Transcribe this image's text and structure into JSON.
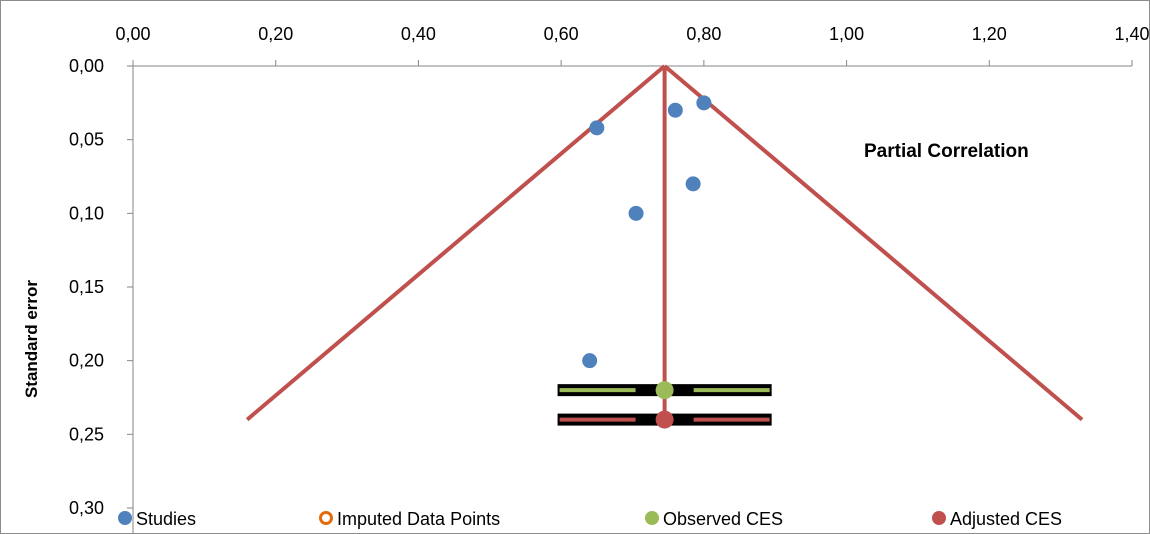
{
  "chart_data": {
    "type": "scatter",
    "title": "",
    "xlabel": "",
    "ylabel": "Standard error",
    "annotation": "Partial Correlation",
    "xlim": [
      0.0,
      1.4
    ],
    "ylim": [
      0.0,
      0.3
    ],
    "y_inverted": true,
    "x_axis_position": "top",
    "x_ticks": [
      0.0,
      0.2,
      0.4,
      0.6,
      0.8,
      1.0,
      1.2,
      1.4
    ],
    "x_tick_labels": [
      "0,00",
      "0,20",
      "0,40",
      "0,60",
      "0,80",
      "1,00",
      "1,20",
      "1,40"
    ],
    "y_ticks": [
      0.0,
      0.05,
      0.1,
      0.15,
      0.2,
      0.25,
      0.3
    ],
    "y_tick_labels": [
      "0,00",
      "0,05",
      "0,10",
      "0,15",
      "0,20",
      "0,25",
      "0,30"
    ],
    "grid": false,
    "legend_position": "bottom",
    "series": [
      {
        "name": "Studies",
        "color": "#4F81BD",
        "marker": "filled-circle",
        "points": [
          {
            "x": 0.8,
            "y": 0.025
          },
          {
            "x": 0.76,
            "y": 0.03
          },
          {
            "x": 0.65,
            "y": 0.042
          },
          {
            "x": 0.785,
            "y": 0.08
          },
          {
            "x": 0.705,
            "y": 0.1
          },
          {
            "x": 0.64,
            "y": 0.2
          }
        ]
      },
      {
        "name": "Imputed Data Points",
        "color": "#E36C09",
        "marker": "hollow-circle",
        "points": []
      },
      {
        "name": "Observed CES",
        "color": "#9BBB59",
        "marker": "filled-circle",
        "points": [
          {
            "x": 0.745,
            "y": 0.22
          }
        ],
        "ci": [
          0.595,
          0.895
        ]
      },
      {
        "name": "Adjusted CES",
        "color": "#C0504D",
        "marker": "filled-circle",
        "points": [
          {
            "x": 0.745,
            "y": 0.24
          }
        ],
        "ci": [
          0.595,
          0.895
        ]
      }
    ],
    "funnel": {
      "color": "#C0504D",
      "apex": {
        "x": 0.745,
        "y": 0.0
      },
      "left_end": {
        "x": 0.16,
        "y": 0.24
      },
      "right_end": {
        "x": 1.33,
        "y": 0.24
      },
      "vertical_to_y": 0.24
    },
    "ci_bar_color": "#000000"
  }
}
